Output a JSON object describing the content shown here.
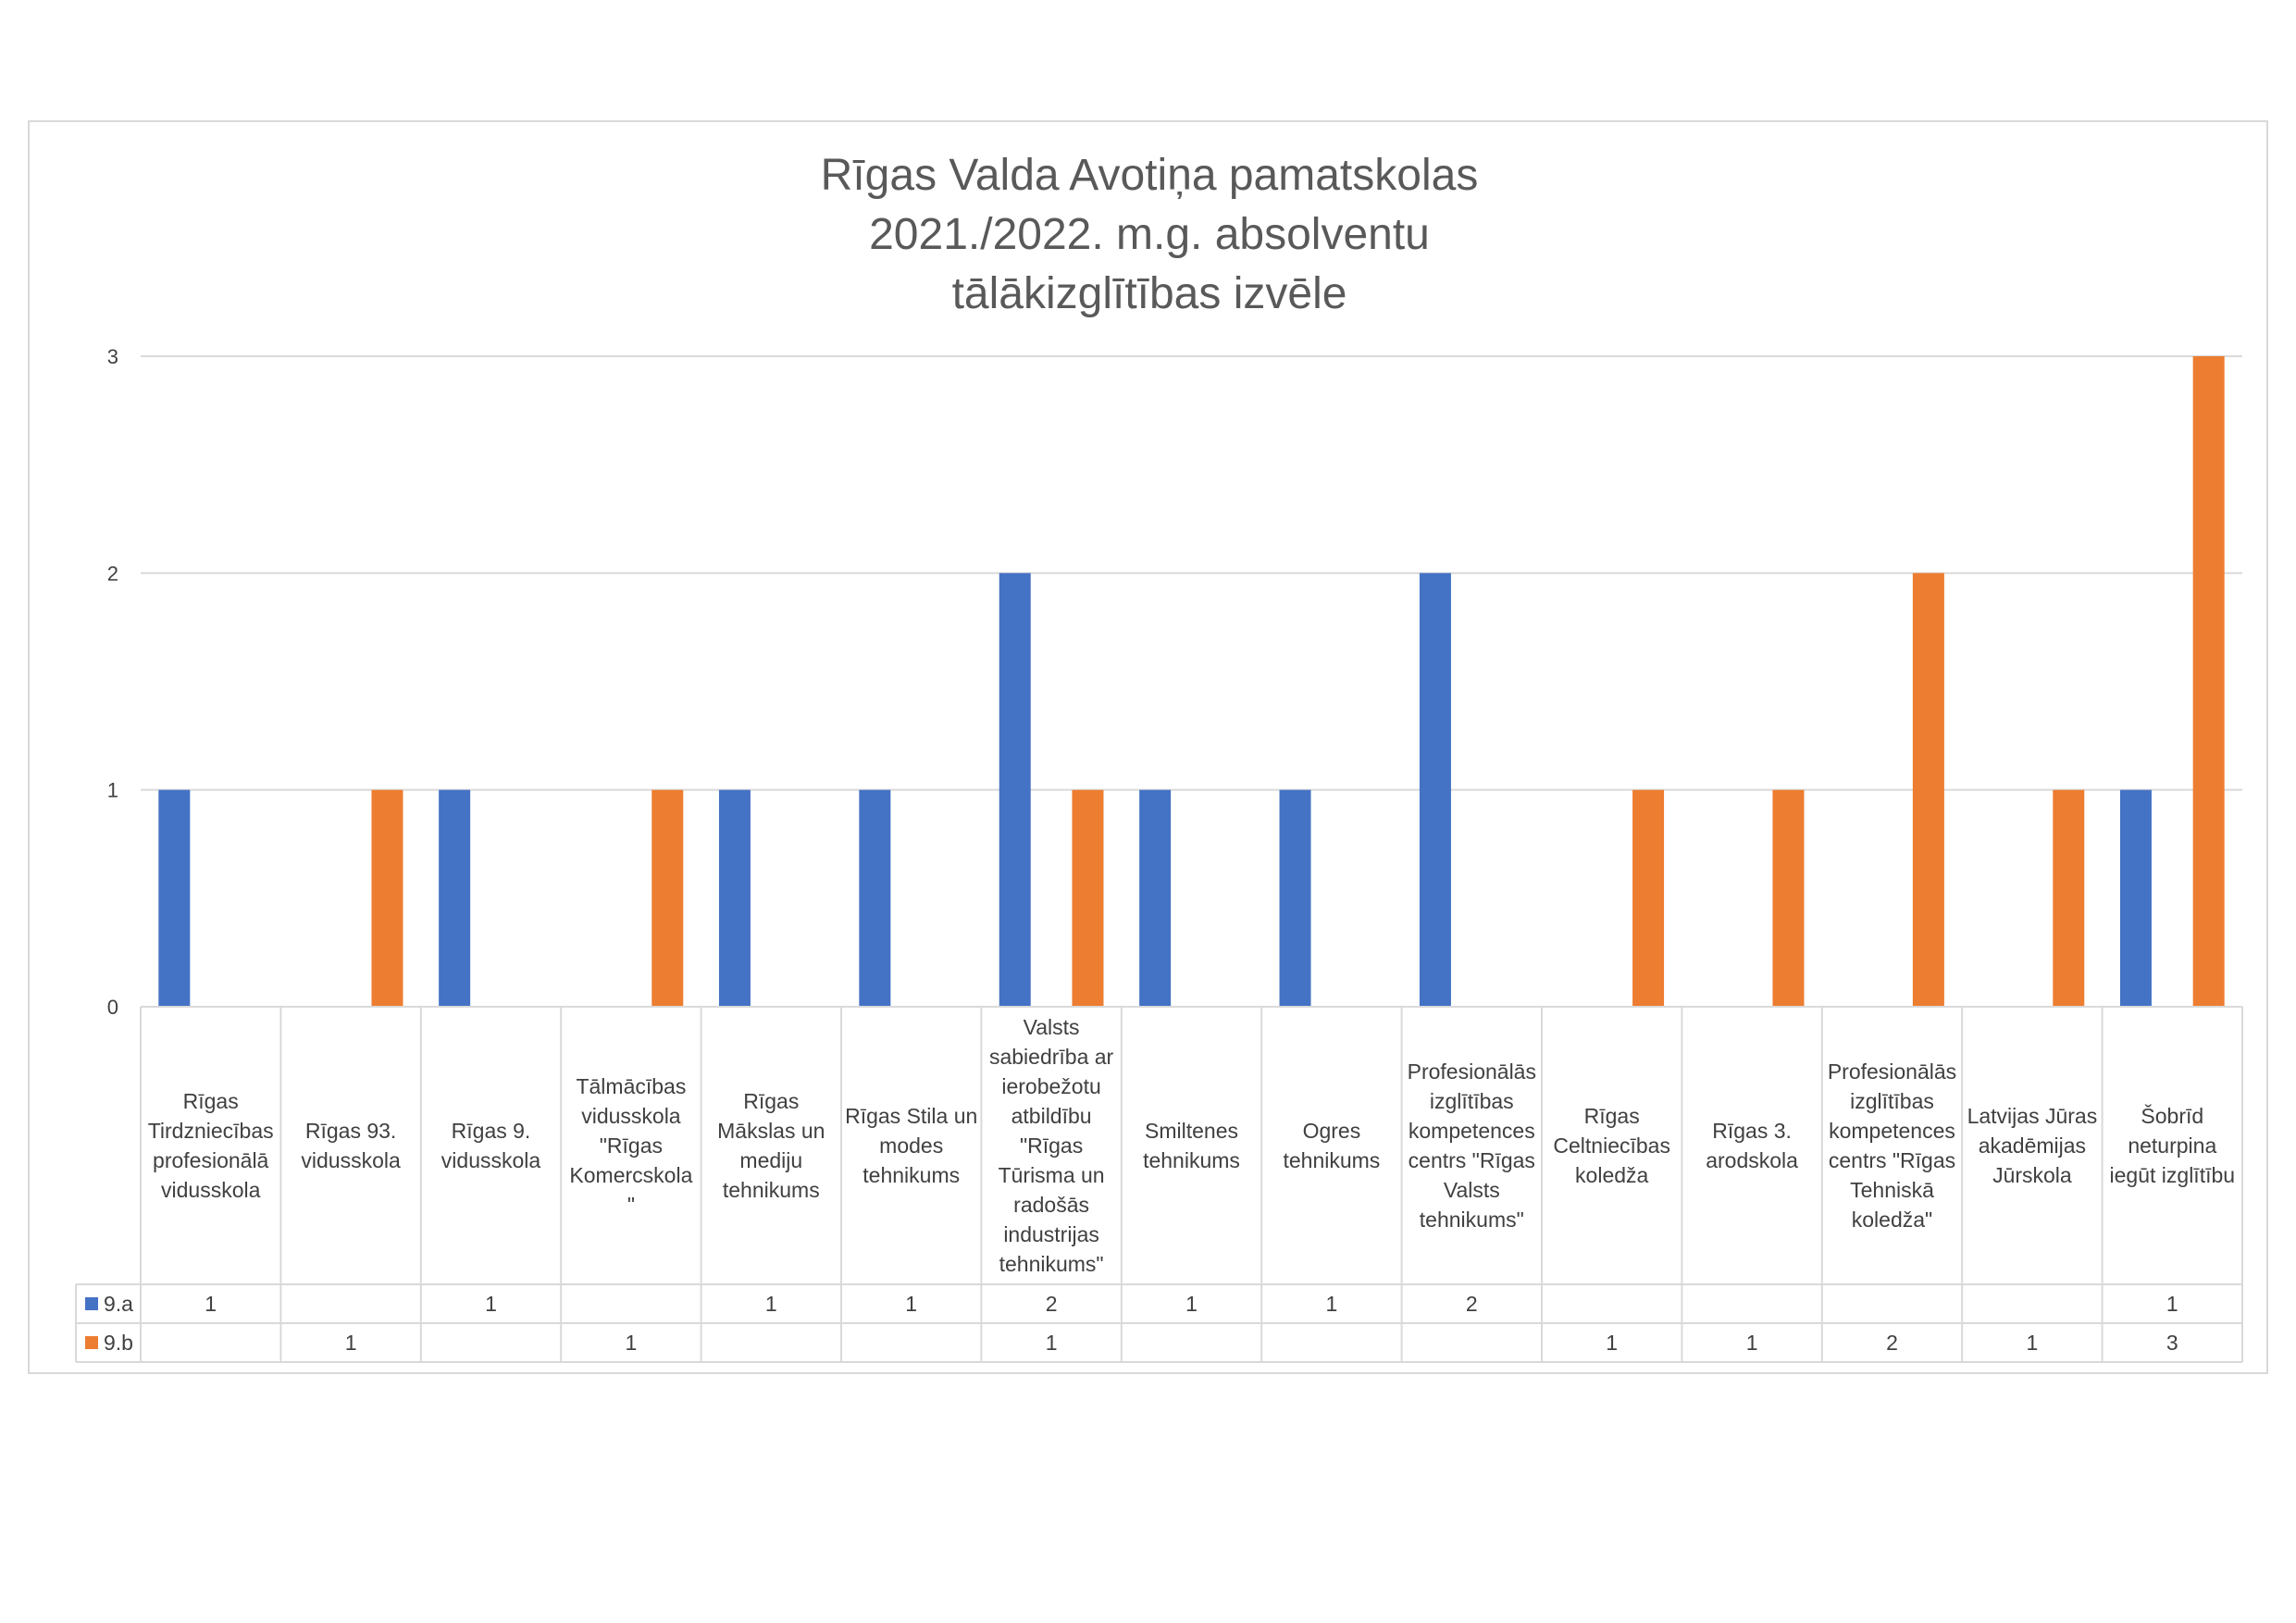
{
  "chart_data": {
    "type": "bar",
    "title": "Rīgas Valda Avotiņa pamatskolas 2021./2022. m.g. absolventu tālākizglītības izvēle",
    "title_lines": [
      "Rīgas Valda Avotiņa pamatskolas",
      "2021./2022. m.g. absolventu",
      "tālākizglītības izvēle"
    ],
    "categories": [
      "Rīgas Tirdzniecības profesionālā vidusskola",
      "Rīgas 93. vidusskola",
      "Rīgas 9. vidusskola",
      "Tālmācības vidusskola \"Rīgas Komercskola\"",
      "Rīgas Mākslas un mediju tehnikums",
      "Rīgas Stila un modes tehnikums",
      "Valsts sabiedrība ar ierobežotu atbildību \"Rīgas Tūrisma un radošās industrijas tehnikums\"",
      "Smiltenes tehnikums",
      "Ogres tehnikums",
      "Profesionālās izglītības kompetences centrs \"Rīgas Valsts tehnikums\"",
      "Rīgas Celtniecības koledža",
      "Rīgas 3. arodskola",
      "Profesionālās izglītības kompetences centrs \"Rīgas Tehniskā koledža\"",
      "Latvijas Jūras akadēmijas Jūrskola",
      "Šobrīd neturpina iegūt izglītību"
    ],
    "category_label_lines": [
      [
        "Rīgas",
        "Tirdzniecības",
        "profesionālā",
        "vidusskola"
      ],
      [
        "Rīgas 93.",
        "vidusskola"
      ],
      [
        "Rīgas 9.",
        "vidusskola"
      ],
      [
        "Tālmācības",
        "vidusskola",
        "\"Rīgas",
        "Komercskola",
        "\""
      ],
      [
        "Rīgas",
        "Mākslas un",
        "mediju",
        "tehnikums"
      ],
      [
        "Rīgas Stila un",
        "modes",
        "tehnikums"
      ],
      [
        "Valsts",
        "sabiedrība ar",
        "ierobežotu",
        "atbildību",
        "\"Rīgas",
        "Tūrisma un",
        "radošās",
        "industrijas",
        "tehnikums\""
      ],
      [
        "Smiltenes",
        "tehnikums"
      ],
      [
        "Ogres",
        "tehnikums"
      ],
      [
        "Profesionālās",
        "izglītības",
        "kompetences",
        "centrs \"Rīgas",
        "Valsts",
        "tehnikums\""
      ],
      [
        "Rīgas",
        "Celtniecības",
        "koledža"
      ],
      [
        "Rīgas 3.",
        "arodskola"
      ],
      [
        "Profesionālās",
        "izglītības",
        "kompetences",
        "centrs \"Rīgas",
        "Tehniskā",
        "koledža\""
      ],
      [
        "Latvijas Jūras",
        "akadēmijas",
        "Jūrskola"
      ],
      [
        "Šobrīd",
        "neturpina",
        "iegūt izglītību"
      ]
    ],
    "series": [
      {
        "name": "9.a",
        "color": "#4472c4",
        "values": [
          1,
          null,
          1,
          null,
          1,
          1,
          2,
          1,
          1,
          2,
          null,
          null,
          null,
          null,
          1
        ]
      },
      {
        "name": "9.b",
        "color": "#ed7d31",
        "values": [
          null,
          1,
          null,
          1,
          null,
          null,
          1,
          null,
          null,
          null,
          1,
          1,
          2,
          1,
          3
        ]
      }
    ],
    "ylim": [
      0,
      3
    ],
    "yticks": [
      0,
      1,
      2,
      3
    ],
    "xlabel": "",
    "ylabel": "",
    "grid": true,
    "legend": "data-table-keys",
    "data_table": true,
    "colors": {
      "grid": "#d9d9d9",
      "table_border": "#d9d9d9",
      "text": "#404040",
      "title": "#595959"
    }
  }
}
